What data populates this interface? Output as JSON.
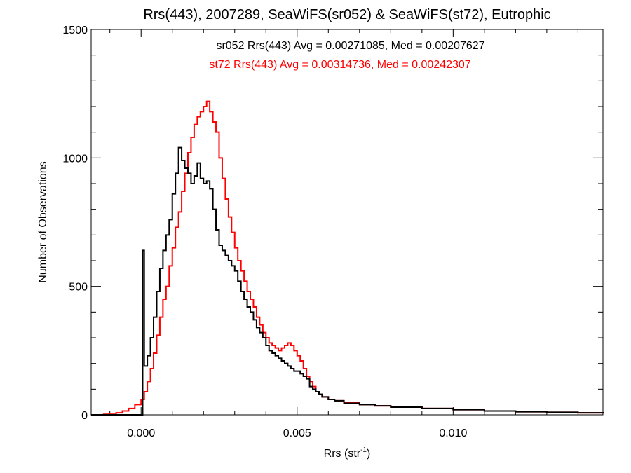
{
  "chart_data": {
    "type": "line",
    "title": "Rrs(443), 2007289, SeaWiFS(sr052) & SeaWiFS(st72), Eutrophic",
    "xlabel": "Rrs (str",
    "xlabel_sup": "-1",
    "xlabel_end": ")",
    "ylabel": "Number of Observations",
    "xlim": [
      -0.0016,
      0.0148
    ],
    "ylim": [
      0,
      1500
    ],
    "xticks": [
      {
        "value": 0.0,
        "label": "0.000"
      },
      {
        "value": 0.005,
        "label": "0.005"
      },
      {
        "value": 0.01,
        "label": "0.010"
      }
    ],
    "yticks": [
      {
        "value": 0,
        "label": "0"
      },
      {
        "value": 500,
        "label": "500"
      },
      {
        "value": 1000,
        "label": "1000"
      },
      {
        "value": 1500,
        "label": "1500"
      }
    ],
    "grid": false,
    "annotations": [
      {
        "text": "sr052 Rrs(443) Avg = 0.00271085, Med = 0.00207627",
        "color": "#000000"
      },
      {
        "text": "st72 Rrs(443) Avg = 0.00314736, Med = 0.00242307",
        "color": "#ff0000"
      }
    ],
    "series": [
      {
        "name": "sr052",
        "color": "#000000",
        "x": [
          -0.0016,
          -0.0002,
          -0.0001,
          0.0,
          5e-05,
          0.0001,
          0.0002,
          0.0003,
          0.0004,
          0.0005,
          0.0006,
          0.0007,
          0.0008,
          0.0009,
          0.001,
          0.0011,
          0.0012,
          0.0013,
          0.0014,
          0.0015,
          0.0016,
          0.0017,
          0.0018,
          0.0019,
          0.002,
          0.0021,
          0.0022,
          0.0023,
          0.0024,
          0.0025,
          0.0026,
          0.0027,
          0.0028,
          0.0029,
          0.003,
          0.0031,
          0.0032,
          0.0033,
          0.0034,
          0.0035,
          0.0036,
          0.0037,
          0.0038,
          0.0039,
          0.004,
          0.0041,
          0.0042,
          0.0043,
          0.0044,
          0.0045,
          0.0046,
          0.0047,
          0.0048,
          0.0049,
          0.005,
          0.0051,
          0.0052,
          0.0053,
          0.0054,
          0.0055,
          0.0056,
          0.0057,
          0.0058,
          0.006,
          0.0062,
          0.0065,
          0.007,
          0.0075,
          0.008,
          0.009,
          0.01,
          0.011,
          0.012,
          0.013,
          0.014,
          0.0148
        ],
        "values": [
          0,
          0,
          0,
          0,
          640,
          190,
          230,
          300,
          380,
          480,
          570,
          640,
          700,
          760,
          860,
          940,
          1040,
          990,
          960,
          940,
          900,
          930,
          980,
          920,
          900,
          910,
          880,
          800,
          720,
          660,
          640,
          620,
          600,
          580,
          560,
          520,
          480,
          450,
          420,
          400,
          370,
          340,
          320,
          300,
          270,
          250,
          240,
          230,
          220,
          210,
          200,
          190,
          180,
          170,
          170,
          160,
          150,
          140,
          110,
          100,
          90,
          80,
          70,
          60,
          55,
          45,
          40,
          35,
          30,
          25,
          20,
          15,
          12,
          10,
          8,
          6
        ]
      },
      {
        "name": "st72",
        "color": "#ff0000",
        "x": [
          -0.0016,
          -0.0012,
          -0.0008,
          -0.0006,
          -0.0004,
          -0.0002,
          0.0,
          0.0001,
          0.0002,
          0.0003,
          0.0004,
          0.0005,
          0.0006,
          0.0007,
          0.0008,
          0.0009,
          0.001,
          0.0011,
          0.0012,
          0.0013,
          0.0014,
          0.0015,
          0.0016,
          0.0017,
          0.0018,
          0.0019,
          0.002,
          0.0021,
          0.0022,
          0.0023,
          0.0024,
          0.0025,
          0.0026,
          0.0027,
          0.0028,
          0.0029,
          0.003,
          0.0031,
          0.0032,
          0.0033,
          0.0034,
          0.0035,
          0.0036,
          0.0037,
          0.0038,
          0.0039,
          0.004,
          0.0041,
          0.0042,
          0.0043,
          0.0044,
          0.0045,
          0.0046,
          0.0047,
          0.0048,
          0.0049,
          0.005,
          0.0051,
          0.0052,
          0.0053,
          0.0054,
          0.0055,
          0.0056,
          0.0057,
          0.0058,
          0.006,
          0.0062,
          0.0065,
          0.007,
          0.0075,
          0.008,
          0.009,
          0.01,
          0.011,
          0.012,
          0.013,
          0.014,
          0.0148
        ],
        "values": [
          0,
          2,
          8,
          15,
          25,
          40,
          60,
          90,
          130,
          180,
          240,
          310,
          380,
          450,
          500,
          580,
          650,
          730,
          790,
          870,
          940,
          1020,
          1080,
          1130,
          1160,
          1180,
          1200,
          1220,
          1180,
          1140,
          1100,
          1000,
          920,
          840,
          770,
          710,
          650,
          600,
          560,
          520,
          480,
          450,
          420,
          380,
          350,
          320,
          300,
          280,
          270,
          260,
          250,
          260,
          270,
          280,
          270,
          250,
          230,
          210,
          180,
          150,
          130,
          110,
          90,
          80,
          70,
          60,
          55,
          48,
          40,
          35,
          30,
          25,
          20,
          15,
          12,
          10,
          8,
          6
        ]
      }
    ]
  }
}
